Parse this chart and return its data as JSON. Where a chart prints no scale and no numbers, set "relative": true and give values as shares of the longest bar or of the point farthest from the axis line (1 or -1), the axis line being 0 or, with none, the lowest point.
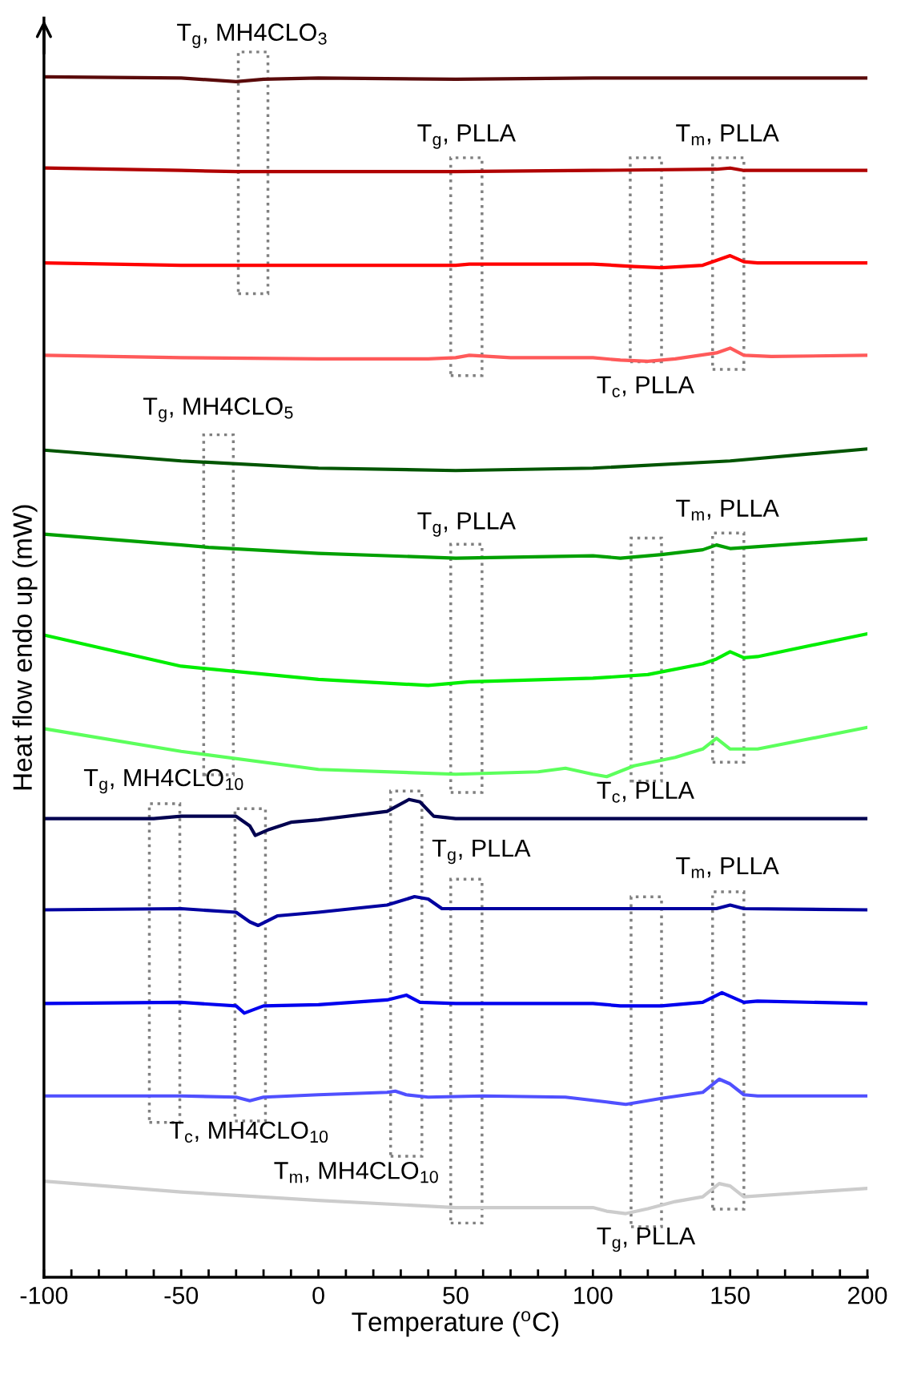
{
  "chart_data": {
    "type": "line",
    "relative": true,
    "xlabel": "Temperature ($^{o}$C)",
    "ylabel": "Heat flow endo up (mW)",
    "xlim": [
      -100,
      200
    ],
    "xticks": [
      -100,
      {
        "value": -90,
        "label": null
      },
      {
        "value": -80,
        "label": null
      },
      {
        "value": -70,
        "label": null
      },
      {
        "value": -60,
        "label": null
      },
      -50,
      {
        "value": -40,
        "label": null
      },
      {
        "value": -30,
        "label": null
      },
      {
        "value": -20,
        "label": null
      },
      {
        "value": -10,
        "label": null
      },
      0,
      {
        "value": 10,
        "label": null
      },
      {
        "value": 20,
        "label": null
      },
      {
        "value": 30,
        "label": null
      },
      {
        "value": 40,
        "label": null
      },
      50,
      {
        "value": 60,
        "label": null
      },
      {
        "value": 70,
        "label": null
      },
      {
        "value": 80,
        "label": null
      },
      {
        "value": 90,
        "label": null
      },
      100,
      {
        "value": 110,
        "label": null
      },
      {
        "value": 120,
        "label": null
      },
      {
        "value": 130,
        "label": null
      },
      {
        "value": 140,
        "label": null
      },
      150,
      {
        "value": 160,
        "label": null
      },
      {
        "value": 170,
        "label": null
      },
      {
        "value": 180,
        "label": null
      },
      {
        "value": 190,
        "label": null
      },
      200
    ],
    "tick_labels": "x",
    "grid": false,
    "legend": false,
    "marker": "none",
    "line_style": "solid",
    "series": [
      {
        "color": "#5a0a0a",
        "x": [
          -100,
          -50,
          -30,
          -20,
          0,
          50,
          100,
          150,
          200
        ],
        "values": [
          1.0,
          0.999,
          0.996,
          0.998,
          0.999,
          0.998,
          0.999,
          0.999,
          0.999
        ]
      },
      {
        "color": "#b00000",
        "x": [
          -100,
          -50,
          -30,
          0,
          50,
          100,
          145,
          150,
          155,
          200
        ],
        "values": [
          0.924,
          0.922,
          0.921,
          0.921,
          0.921,
          0.922,
          0.923,
          0.924,
          0.922,
          0.922
        ]
      },
      {
        "color": "#ff0000",
        "x": [
          -100,
          -50,
          0,
          50,
          55,
          100,
          115,
          125,
          140,
          150,
          155,
          160,
          200
        ],
        "values": [
          0.845,
          0.843,
          0.843,
          0.843,
          0.844,
          0.844,
          0.842,
          0.841,
          0.843,
          0.851,
          0.846,
          0.845,
          0.845
        ]
      },
      {
        "color": "#ff5a5a",
        "x": [
          -100,
          -50,
          0,
          40,
          50,
          55,
          70,
          100,
          110,
          120,
          130,
          145,
          150,
          155,
          165,
          200
        ],
        "values": [
          0.768,
          0.766,
          0.765,
          0.765,
          0.766,
          0.768,
          0.766,
          0.766,
          0.764,
          0.763,
          0.765,
          0.77,
          0.774,
          0.768,
          0.767,
          0.768
        ]
      },
      {
        "color": "#005500",
        "x": [
          -100,
          -50,
          0,
          50,
          100,
          150,
          200
        ],
        "values": [
          0.689,
          0.68,
          0.674,
          0.672,
          0.674,
          0.68,
          0.69
        ]
      },
      {
        "color": "#00a000",
        "x": [
          -100,
          -50,
          -40,
          0,
          50,
          100,
          110,
          125,
          140,
          145,
          150,
          200
        ],
        "values": [
          0.619,
          0.61,
          0.608,
          0.603,
          0.599,
          0.601,
          0.599,
          0.602,
          0.606,
          0.61,
          0.607,
          0.615
        ]
      },
      {
        "color": "#00ee00",
        "x": [
          -100,
          -50,
          0,
          40,
          50,
          55,
          100,
          120,
          140,
          145,
          150,
          155,
          160,
          200
        ],
        "values": [
          0.535,
          0.509,
          0.498,
          0.493,
          0.495,
          0.496,
          0.499,
          0.502,
          0.511,
          0.515,
          0.521,
          0.516,
          0.517,
          0.536
        ]
      },
      {
        "color": "#5cff5c",
        "x": [
          -100,
          -50,
          0,
          50,
          80,
          90,
          100,
          105,
          115,
          130,
          140,
          145,
          150,
          160,
          200
        ],
        "values": [
          0.457,
          0.438,
          0.423,
          0.419,
          0.421,
          0.424,
          0.419,
          0.417,
          0.426,
          0.433,
          0.44,
          0.449,
          0.44,
          0.44,
          0.458
        ]
      },
      {
        "color": "#000050",
        "x": [
          -100,
          -60,
          -50,
          -30,
          -25,
          -23,
          -18,
          -10,
          0,
          25,
          33,
          37,
          42,
          50,
          100,
          200
        ],
        "values": [
          0.382,
          0.382,
          0.384,
          0.384,
          0.376,
          0.368,
          0.373,
          0.379,
          0.381,
          0.388,
          0.398,
          0.396,
          0.384,
          0.382,
          0.382,
          0.382
        ]
      },
      {
        "color": "#0000a0",
        "x": [
          -100,
          -50,
          -30,
          -25,
          -22,
          -15,
          0,
          25,
          35,
          40,
          45,
          100,
          145,
          150,
          155,
          200
        ],
        "values": [
          0.306,
          0.307,
          0.304,
          0.296,
          0.293,
          0.301,
          0.304,
          0.31,
          0.317,
          0.315,
          0.307,
          0.307,
          0.307,
          0.31,
          0.307,
          0.306
        ]
      },
      {
        "color": "#0000ee",
        "x": [
          -100,
          -50,
          -30,
          -27,
          -20,
          0,
          25,
          32,
          37,
          50,
          100,
          110,
          125,
          140,
          147,
          152,
          155,
          160,
          200
        ],
        "values": [
          0.228,
          0.229,
          0.226,
          0.22,
          0.226,
          0.227,
          0.231,
          0.235,
          0.229,
          0.228,
          0.228,
          0.226,
          0.226,
          0.229,
          0.237,
          0.232,
          0.229,
          0.23,
          0.228
        ]
      },
      {
        "color": "#5050ff",
        "x": [
          -100,
          -50,
          -30,
          -25,
          -20,
          0,
          25,
          28,
          32,
          40,
          60,
          90,
          105,
          112,
          125,
          140,
          146,
          150,
          155,
          160,
          200
        ],
        "values": [
          0.151,
          0.151,
          0.15,
          0.147,
          0.15,
          0.152,
          0.154,
          0.155,
          0.152,
          0.15,
          0.151,
          0.15,
          0.146,
          0.144,
          0.149,
          0.154,
          0.165,
          0.161,
          0.152,
          0.151,
          0.151
        ]
      },
      {
        "color": "#cccccc",
        "x": [
          -100,
          -50,
          0,
          50,
          90,
          100,
          105,
          112,
          120,
          130,
          140,
          146,
          150,
          155,
          200
        ],
        "values": [
          0.08,
          0.071,
          0.064,
          0.058,
          0.058,
          0.058,
          0.055,
          0.053,
          0.057,
          0.063,
          0.067,
          0.078,
          0.076,
          0.067,
          0.074
        ]
      }
    ],
    "annotations": [
      "T$_{g}$, MH4CLO$_{3}$",
      "T$_{g}$, PLLA",
      "T$_{m}$, PLLA",
      "T$_{c}$, PLLA",
      "T$_{g}$, MH4CLO$_{5}$",
      "T$_{g}$, PLLA",
      "T$_{m}$, PLLA",
      "T$_{g}$, MH4CLO$_{10}$",
      "T$_{c}$, PLLA",
      "T$_{g}$, PLLA",
      "T$_{m}$, PLLA",
      "T$_{c}$, MH4CLO$_{10}$",
      "T$_{m}$, MH4CLO$_{10}$",
      "T$_{g}$, PLLA"
    ]
  }
}
